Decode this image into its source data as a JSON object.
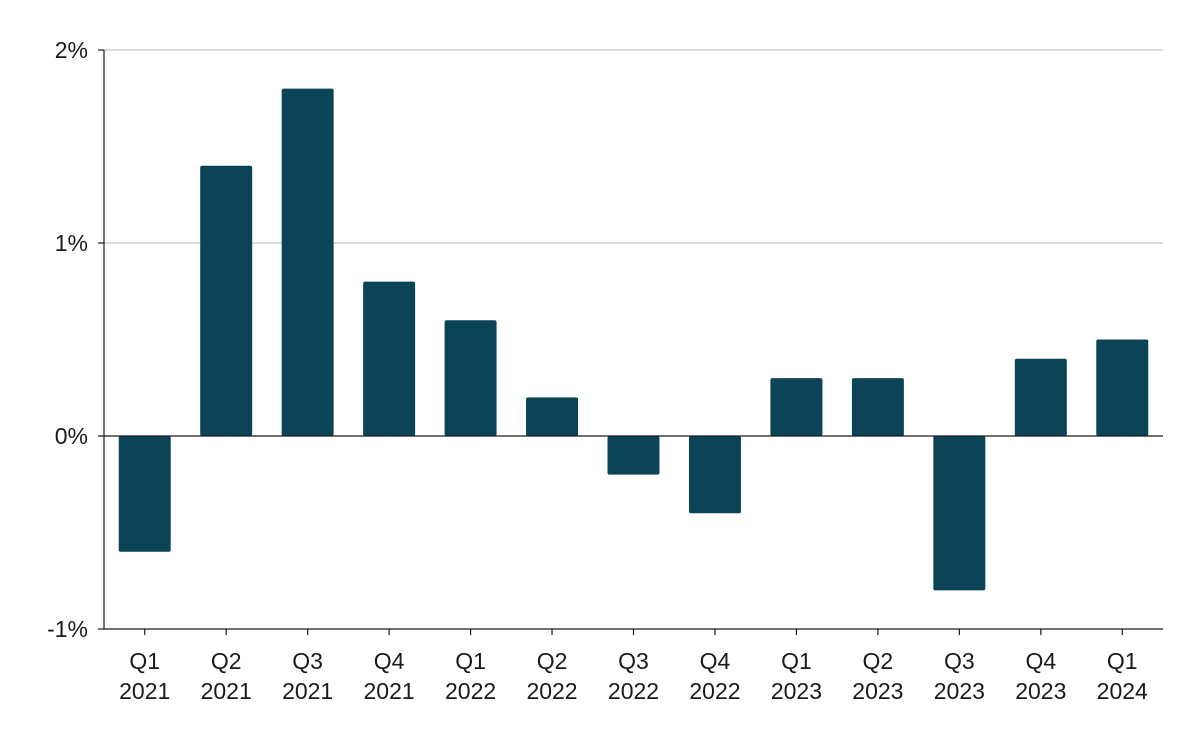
{
  "chart_data": {
    "type": "bar",
    "title": "",
    "xlabel": "",
    "ylabel": "",
    "categories": [
      {
        "line1": "Q1",
        "line2": "2021"
      },
      {
        "line1": "Q2",
        "line2": "2021"
      },
      {
        "line1": "Q3",
        "line2": "2021"
      },
      {
        "line1": "Q4",
        "line2": "2021"
      },
      {
        "line1": "Q1",
        "line2": "2022"
      },
      {
        "line1": "Q2",
        "line2": "2022"
      },
      {
        "line1": "Q3",
        "line2": "2022"
      },
      {
        "line1": "Q4",
        "line2": "2022"
      },
      {
        "line1": "Q1",
        "line2": "2023"
      },
      {
        "line1": "Q2",
        "line2": "2023"
      },
      {
        "line1": "Q3",
        "line2": "2023"
      },
      {
        "line1": "Q4",
        "line2": "2023"
      },
      {
        "line1": "Q1",
        "line2": "2024"
      }
    ],
    "values": [
      -0.6,
      1.4,
      1.8,
      0.8,
      0.6,
      0.2,
      -0.2,
      -0.4,
      0.3,
      0.3,
      -0.8,
      0.4,
      0.5
    ],
    "ylim": [
      -1,
      2
    ],
    "yticks": [
      {
        "value": 2,
        "label": "2%"
      },
      {
        "value": 1,
        "label": "1%"
      },
      {
        "value": 0,
        "label": "0%"
      },
      {
        "value": -1,
        "label": "-1%"
      }
    ],
    "grid": true,
    "legend": "none",
    "colors": {
      "bar": "#0b4457",
      "grid": "#c8c8c8",
      "axis": "#1a1a1a"
    }
  }
}
